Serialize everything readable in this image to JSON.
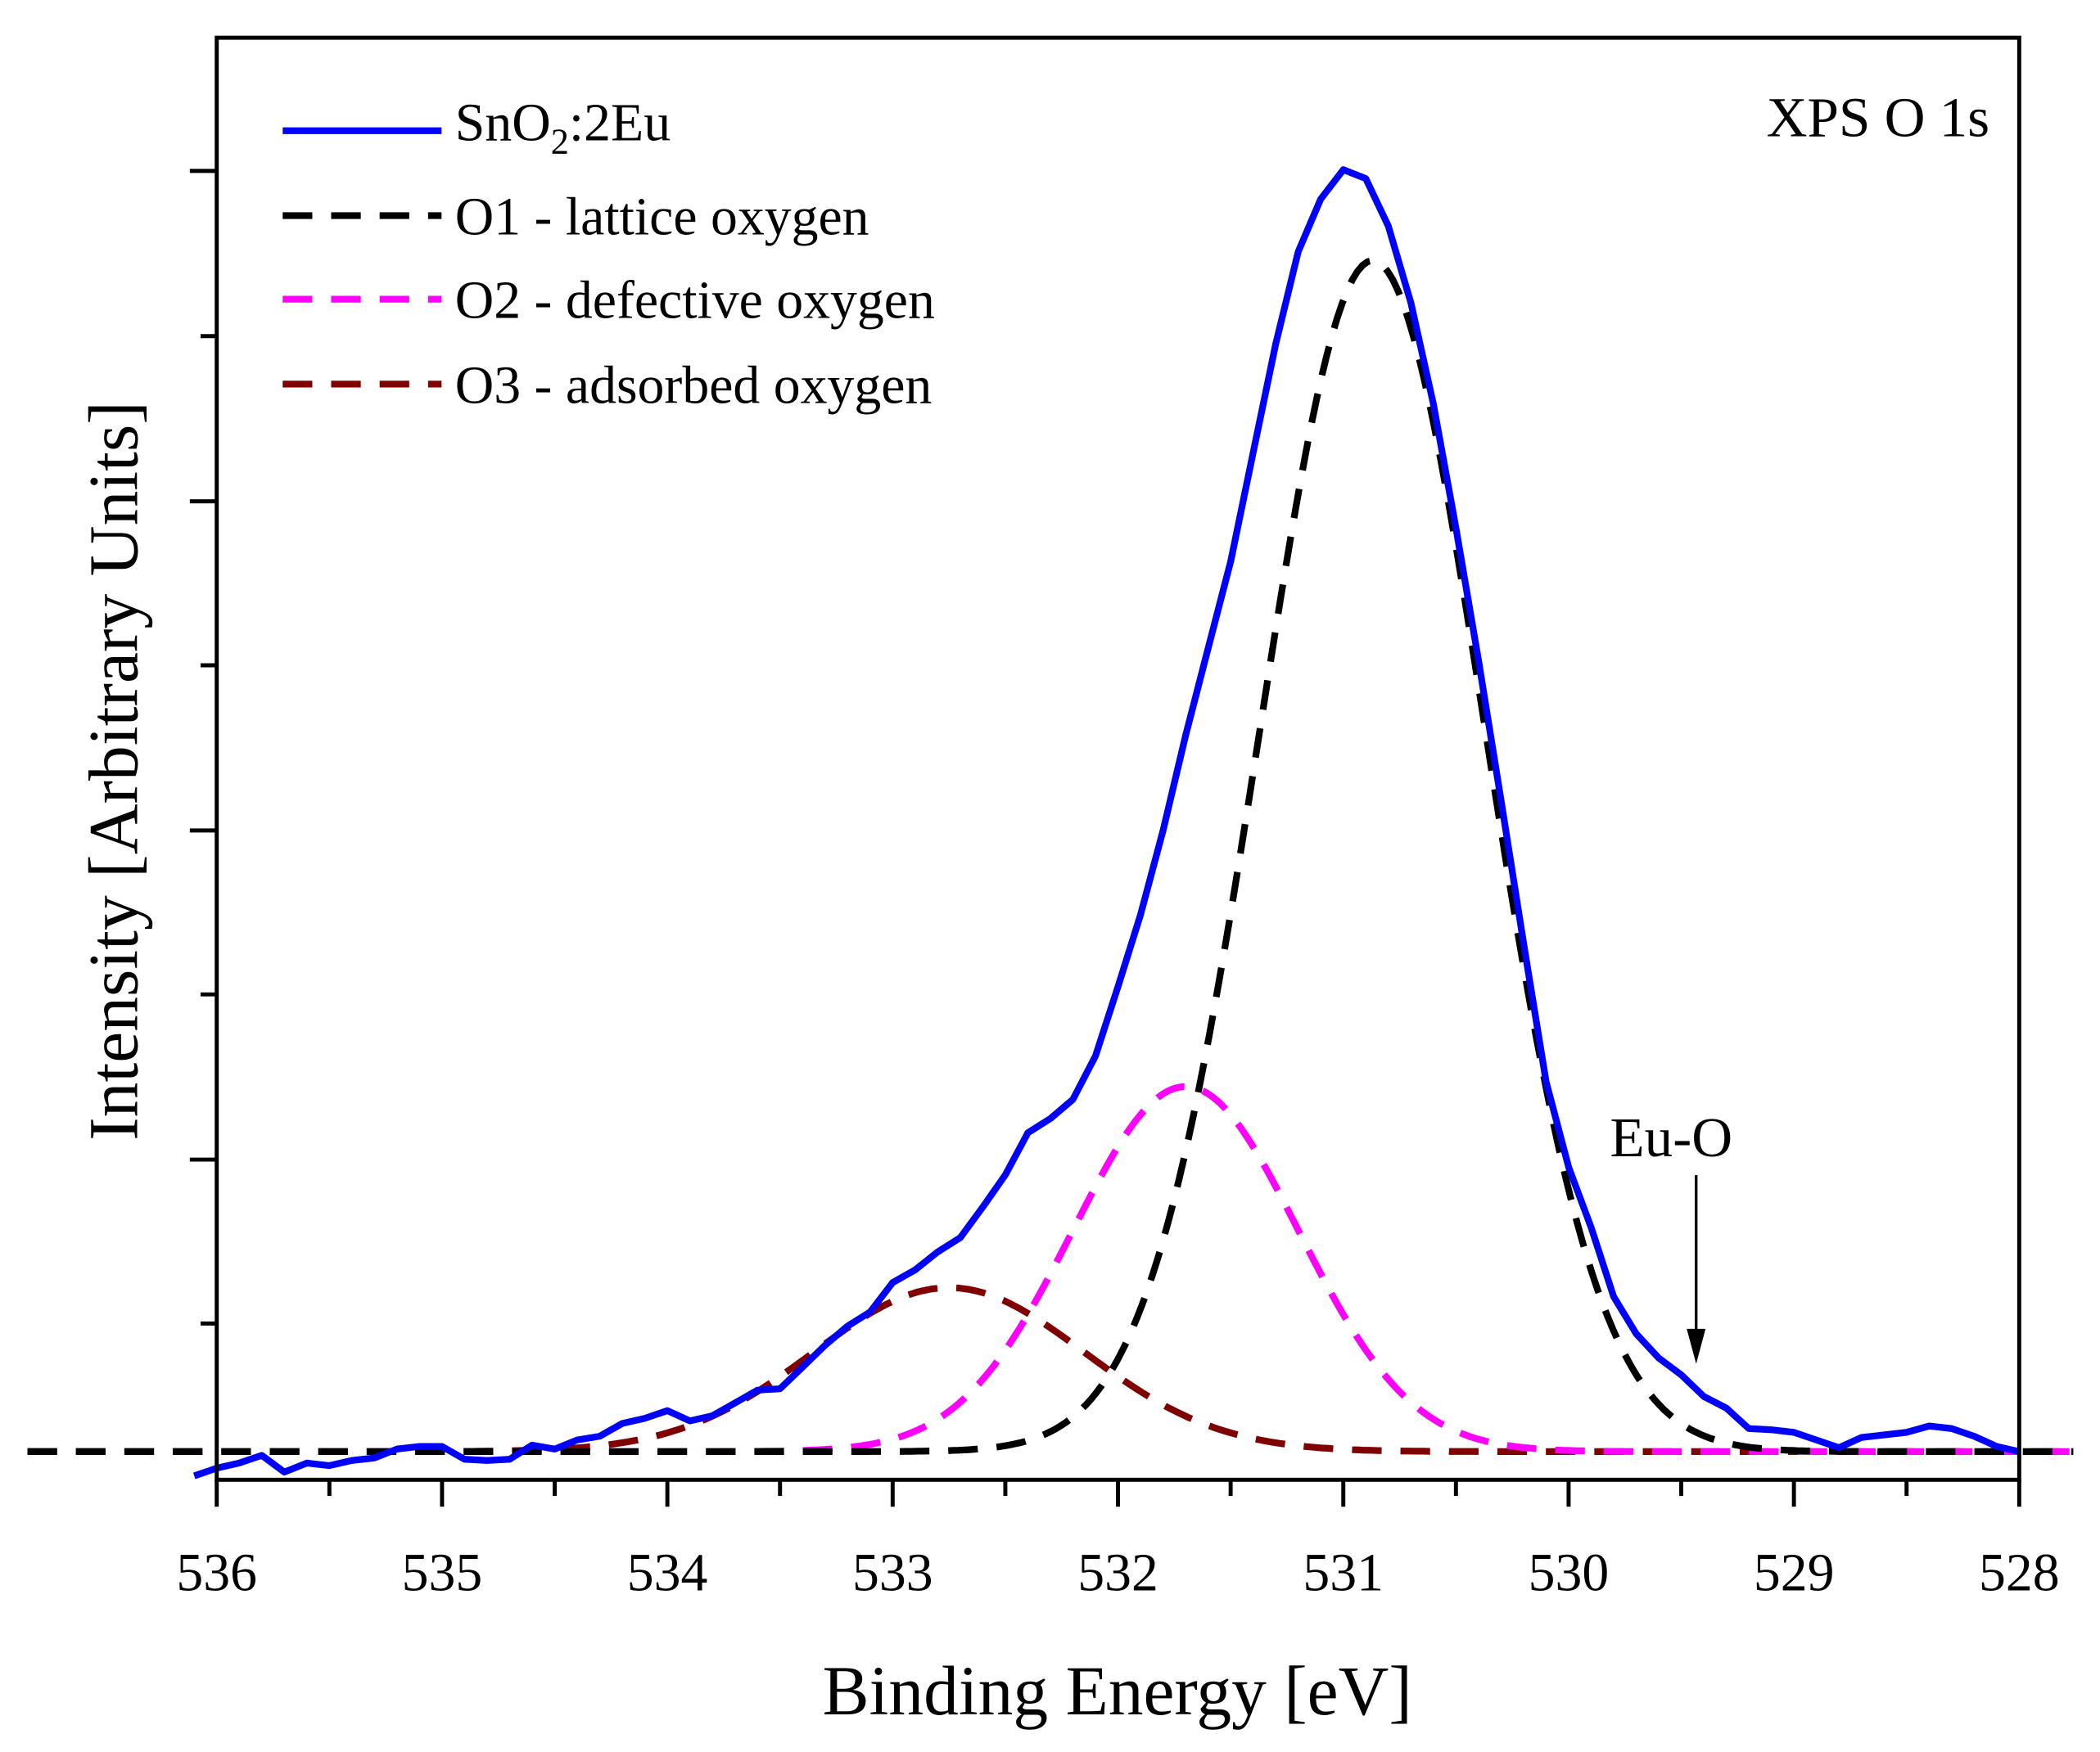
{
  "chart_data": {
    "type": "line",
    "title": "XPS O 1s",
    "xlabel": "Binding Energy [eV]",
    "ylabel": "Intensity [Arbitrary Units]",
    "xlim": [
      536,
      528
    ],
    "x_reversed": true,
    "ylim": [
      -0.022,
      1.104
    ],
    "xticks": [
      536,
      535,
      534,
      533,
      532,
      531,
      530,
      529,
      528
    ],
    "xminor_step": 0.5,
    "yticks_major": [
      0.228,
      0.485,
      0.742,
      1.0
    ],
    "yticks_minor": [
      0.1,
      0.357,
      0.614,
      0.871
    ],
    "ytick_labels_shown": false,
    "grid": false,
    "legend_position": "top-left",
    "series": [
      {
        "name": "SnO2:2Eu",
        "name_main": "SnO",
        "name_sub": "2",
        "name_tail": ":2Eu",
        "color": "#0000ff",
        "style": "solid",
        "x_start": 536.1,
        "x_step": -0.1,
        "values": [
          -0.019,
          -0.013,
          -0.009,
          -0.003,
          -0.016,
          -0.009,
          -0.011,
          -0.007,
          -0.005,
          0.002,
          0.004,
          0.004,
          -0.006,
          -0.007,
          -0.006,
          0.005,
          0.002,
          0.009,
          0.012,
          0.022,
          0.026,
          0.032,
          0.024,
          0.028,
          0.038,
          0.048,
          0.049,
          0.066,
          0.083,
          0.098,
          0.109,
          0.132,
          0.142,
          0.156,
          0.167,
          0.191,
          0.216,
          0.249,
          0.26,
          0.275,
          0.309,
          0.363,
          0.419,
          0.485,
          0.559,
          0.627,
          0.695,
          0.78,
          0.865,
          0.937,
          0.978,
          1.001,
          0.994,
          0.957,
          0.897,
          0.818,
          0.721,
          0.618,
          0.509,
          0.397,
          0.289,
          0.222,
          0.175,
          0.121,
          0.092,
          0.073,
          0.06,
          0.043,
          0.034,
          0.018,
          0.017,
          0.015,
          0.009,
          0.003,
          0.011,
          0.013,
          0.015,
          0.02,
          0.018,
          0.012,
          0.004,
          0.0
        ]
      },
      {
        "name": "O1 - lattice oxygen",
        "color": "#000000",
        "style": "dashed",
        "gaussian": {
          "center": 530.87,
          "amplitude": 0.93,
          "sigma": 0.5
        }
      },
      {
        "name": "O2 - defective oxygen",
        "color": "#ff00ff",
        "style": "dashed",
        "gaussian": {
          "center": 531.7,
          "amplitude": 0.285,
          "sigma": 0.5
        }
      },
      {
        "name": "O3 - adsorbed oxygen",
        "color": "#800000",
        "style": "dashed",
        "gaussian": {
          "center": 532.75,
          "amplitude": 0.128,
          "sigma": 0.6
        }
      }
    ],
    "fit_range": [
      536.84,
      527.76
    ],
    "annotations": [
      {
        "text": "Eu-O",
        "arrow_to_x": 529.45,
        "arrow_to_y": 0.07
      }
    ]
  }
}
